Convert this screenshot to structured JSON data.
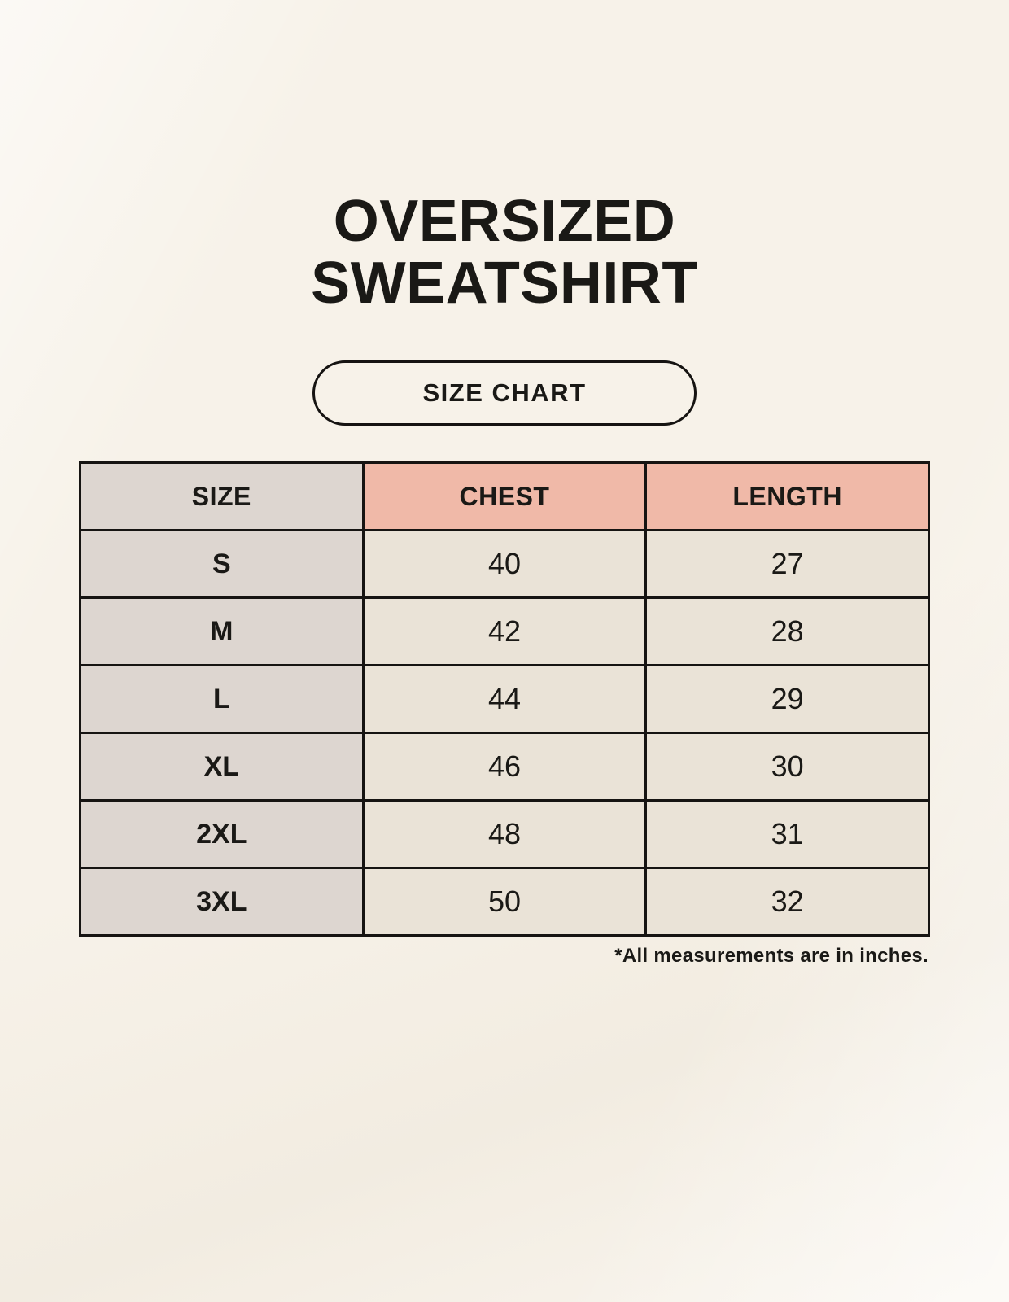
{
  "header": {
    "title_line1": "OVERSIZED",
    "title_line2": "SWEATSHIRT",
    "badge_label": "SIZE CHART"
  },
  "table": {
    "columns": [
      "SIZE",
      "CHEST",
      "LENGTH"
    ],
    "rows": [
      {
        "size": "S",
        "chest": "40",
        "length": "27"
      },
      {
        "size": "M",
        "chest": "42",
        "length": "28"
      },
      {
        "size": "L",
        "chest": "44",
        "length": "29"
      },
      {
        "size": "XL",
        "chest": "46",
        "length": "30"
      },
      {
        "size": "2XL",
        "chest": "48",
        "length": "31"
      },
      {
        "size": "3XL",
        "chest": "50",
        "length": "32"
      }
    ],
    "footnote": "*All measurements are in inches."
  },
  "colors": {
    "background": "#f7f2e9",
    "accent": "#f0b9a8",
    "size_col": "#ddd6d0",
    "cell": "#eae3d7",
    "border": "#161412",
    "text": "#1a1916"
  }
}
